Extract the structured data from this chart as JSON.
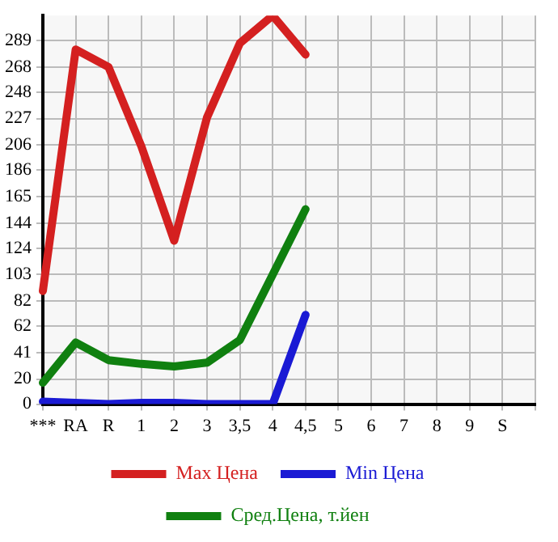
{
  "chart_data": {
    "type": "line",
    "categories": [
      "***",
      "RA",
      "R",
      "1",
      "2",
      "3",
      "3,5",
      "4",
      "4,5",
      "5",
      "6",
      "7",
      "8",
      "9",
      "S",
      null
    ],
    "ylim": [
      0,
      309
    ],
    "yticks": [
      0,
      20,
      41,
      62,
      82,
      103,
      124,
      144,
      165,
      186,
      206,
      227,
      248,
      268,
      289
    ],
    "grid": true,
    "legend": "bottom",
    "marker": "none",
    "line_style": "solid",
    "series": [
      {
        "name": "Max Цена",
        "color": "#d42020",
        "values": [
          90,
          282,
          268,
          205,
          130,
          228,
          287,
          309,
          278,
          null,
          null,
          null,
          null,
          null,
          null,
          null
        ]
      },
      {
        "name": "Min Цена",
        "color": "#1a1ad4",
        "values": [
          2,
          1,
          0,
          1,
          1,
          0,
          0,
          0,
          71,
          null,
          null,
          null,
          null,
          null,
          null,
          null
        ]
      },
      {
        "name": "Сред.Цена, т.йен",
        "color": "#108010",
        "values": [
          17,
          49,
          35,
          32,
          30,
          33,
          51,
          103,
          155,
          null,
          null,
          null,
          null,
          null,
          null,
          null
        ]
      }
    ]
  }
}
